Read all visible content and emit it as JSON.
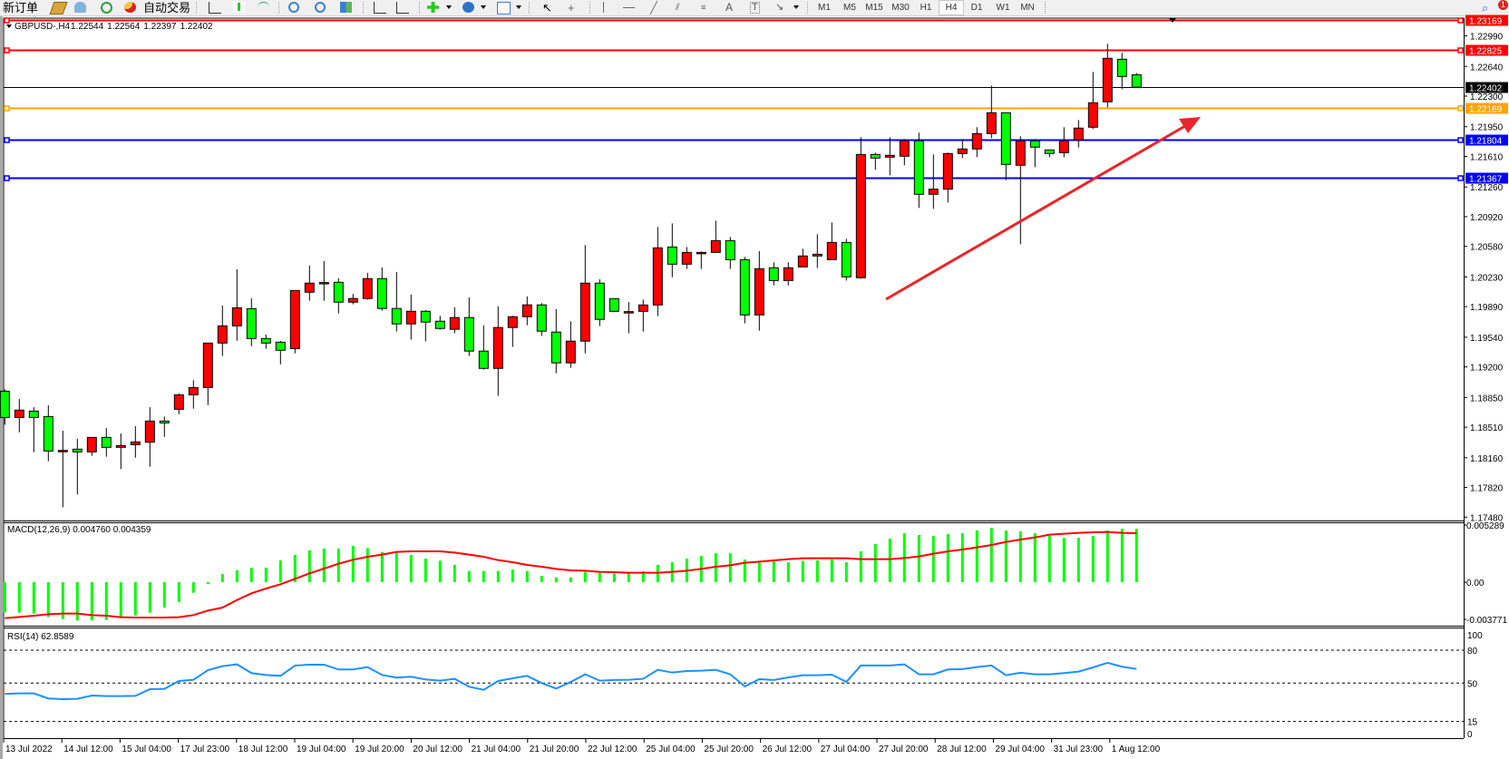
{
  "toolbar": {
    "new_order_label": "新订单",
    "auto_trading_label": "自动交易",
    "timeframes": [
      "M1",
      "M5",
      "M15",
      "M30",
      "H1",
      "H4",
      "D1",
      "W1",
      "MN"
    ],
    "active_timeframe": "H4",
    "notification_count": "1",
    "icons": [
      "new-order-icon",
      "market-watch-icon",
      "data-window-icon",
      "signals-icon",
      "auto-trading-icon",
      "bar-chart-icon",
      "candlestick-icon",
      "line-chart-icon",
      "zoom-in-icon",
      "zoom-out-icon",
      "tile-windows-icon",
      "chart-shift-icon",
      "auto-scroll-icon",
      "add-indicator-icon",
      "periods-clock-icon",
      "templates-icon",
      "cursor-icon",
      "crosshair-icon",
      "vertical-line-icon",
      "horizontal-line-icon",
      "trendline-icon",
      "fibo-channel-icon",
      "fibonacci-icon",
      "text-icon",
      "text-label-icon",
      "arrows-icon",
      "search-icon",
      "notification-icon"
    ]
  },
  "chart": {
    "symbol": "GBPUSD-,H4",
    "ohlc": [
      "1.22544",
      "1.22564",
      "1.22397",
      "1.22402"
    ],
    "price_ticks": [
      "1.22990",
      "1.22640",
      "1.22300",
      "1.21950",
      "1.21610",
      "1.21260",
      "1.20920",
      "1.20580",
      "1.20230",
      "1.19890",
      "1.19540",
      "1.19200",
      "1.18850",
      "1.18510",
      "1.18160",
      "1.17820",
      "1.17480"
    ],
    "levels": [
      {
        "price": "1.23169",
        "color": "#ff0000",
        "text_color": "#ffffff"
      },
      {
        "price": "1.22825",
        "color": "#ff0000",
        "text_color": "#ffffff"
      },
      {
        "price": "1.22402",
        "color": "#000000",
        "text_color": "#ffffff",
        "bid_line": true
      },
      {
        "price": "1.22169",
        "color": "#ffa500",
        "text_color": "#ffffff"
      },
      {
        "price": "1.21804",
        "color": "#0000ff",
        "text_color": "#ffffff"
      },
      {
        "price": "1.21367",
        "color": "#0000ff",
        "text_color": "#ffffff"
      }
    ],
    "time_labels": [
      "13 Jul 2022",
      "14 Jul 12:00",
      "15 Jul 04:00",
      "17 Jul 23:00",
      "18 Jul 12:00",
      "19 Jul 04:00",
      "19 Jul 20:00",
      "20 Jul 12:00",
      "21 Jul 04:00",
      "21 Jul 20:00",
      "22 Jul 12:00",
      "25 Jul 04:00",
      "25 Jul 20:00",
      "26 Jul 12:00",
      "27 Jul 04:00",
      "27 Jul 20:00",
      "28 Jul 12:00",
      "29 Jul 04:00",
      "31 Jul 23:00",
      "1 Aug 12:00"
    ],
    "bull_color": "#ff0000",
    "bear_color": "#00ff00",
    "arrow_color": "#e8262b",
    "macd": {
      "label": "MACD(12,26,9) 0.004760 0.004359",
      "ticks": [
        "0.005289",
        "0.00",
        "-0.003771"
      ],
      "hist_color": "#00ff00",
      "signal_color": "#ff0000"
    },
    "rsi": {
      "label": "RSI(14) 62.8589",
      "ticks": [
        "100",
        "80",
        "50",
        "15",
        "0"
      ],
      "levels": [
        80,
        50,
        15
      ],
      "line_color": "#1e90ff"
    }
  },
  "chart_data": {
    "type": "candlestick",
    "ylim": [
      1.1748,
      1.23169
    ],
    "ohlc": [
      [
        1.18922,
        1.18943,
        1.18538,
        1.18621
      ],
      [
        1.18621,
        1.18833,
        1.18452,
        1.18705
      ],
      [
        1.18694,
        1.18739,
        1.18224,
        1.18621
      ],
      [
        1.18632,
        1.1876,
        1.1812,
        1.18237
      ],
      [
        1.18244,
        1.18469,
        1.17594,
        1.18244
      ],
      [
        1.18258,
        1.18376,
        1.17739,
        1.18227
      ],
      [
        1.18227,
        1.18393,
        1.18182,
        1.18393
      ],
      [
        1.18393,
        1.185,
        1.18172,
        1.18279
      ],
      [
        1.18279,
        1.18438,
        1.1803,
        1.183
      ],
      [
        1.1831,
        1.18521,
        1.18161,
        1.18341
      ],
      [
        1.18338,
        1.18739,
        1.18058,
        1.1858
      ],
      [
        1.1858,
        1.18632,
        1.184,
        1.18559
      ],
      [
        1.18715,
        1.18895,
        1.18659,
        1.18881
      ],
      [
        1.18881,
        1.19047,
        1.18722,
        1.18964
      ],
      [
        1.18964,
        1.19473,
        1.18763,
        1.19473
      ],
      [
        1.19473,
        1.19902,
        1.19324,
        1.1967
      ],
      [
        1.1967,
        1.20317,
        1.195,
        1.19877
      ],
      [
        1.19867,
        1.19985,
        1.19438,
        1.19525
      ],
      [
        1.19525,
        1.1957,
        1.19407,
        1.19473
      ],
      [
        1.19483,
        1.19497,
        1.1923,
        1.1939
      ],
      [
        1.1941,
        1.20075,
        1.19355,
        1.20075
      ],
      [
        1.20055,
        1.2036,
        1.19958,
        1.20159
      ],
      [
        1.20166,
        1.20412,
        1.19958,
        1.20166
      ],
      [
        1.20169,
        1.20215,
        1.19813,
        1.19941
      ],
      [
        1.19941,
        1.20035,
        1.19917,
        1.19983
      ],
      [
        1.19983,
        1.20277,
        1.19969,
        1.20211
      ],
      [
        1.20211,
        1.20339,
        1.19844,
        1.19869
      ],
      [
        1.19869,
        1.20287,
        1.19606,
        1.19692
      ],
      [
        1.19692,
        1.20028,
        1.19512,
        1.19837
      ],
      [
        1.19837,
        1.19851,
        1.19491,
        1.19713
      ],
      [
        1.19723,
        1.19785,
        1.19626,
        1.1964
      ],
      [
        1.1963,
        1.19882,
        1.19585,
        1.19765
      ],
      [
        1.19765,
        1.19996,
        1.19325,
        1.19381
      ],
      [
        1.19381,
        1.19675,
        1.19169,
        1.19183
      ],
      [
        1.19183,
        1.19893,
        1.18869,
        1.19651
      ],
      [
        1.19651,
        1.19785,
        1.19429,
        1.19775
      ],
      [
        1.19775,
        1.20007,
        1.19678,
        1.1991
      ],
      [
        1.1991,
        1.19931,
        1.19554,
        1.19609
      ],
      [
        1.19599,
        1.19862,
        1.19128,
        1.19246
      ],
      [
        1.19246,
        1.19723,
        1.1919,
        1.19495
      ],
      [
        1.19495,
        1.20595,
        1.19356,
        1.20159
      ],
      [
        1.20159,
        1.20204,
        1.19668,
        1.19744
      ],
      [
        1.19982,
        1.19982,
        1.19826,
        1.19836
      ],
      [
        1.19833,
        1.19944,
        1.19584,
        1.19833
      ],
      [
        1.19836,
        1.19971,
        1.19605,
        1.19909
      ],
      [
        1.19909,
        1.20802,
        1.19781,
        1.20563
      ],
      [
        1.20573,
        1.20843,
        1.20227,
        1.20376
      ],
      [
        1.20376,
        1.20573,
        1.20321,
        1.20511
      ],
      [
        1.20511,
        1.20521,
        1.20321,
        1.20511
      ],
      [
        1.20511,
        1.20874,
        1.20511,
        1.20646
      ],
      [
        1.20646,
        1.20688,
        1.20321,
        1.20428
      ],
      [
        1.20428,
        1.20459,
        1.19698,
        1.19795
      ],
      [
        1.19795,
        1.20525,
        1.19615,
        1.20324
      ],
      [
        1.20335,
        1.20397,
        1.20134,
        1.20189
      ],
      [
        1.20189,
        1.20397,
        1.20134,
        1.20335
      ],
      [
        1.20345,
        1.20553,
        1.20345,
        1.2047
      ],
      [
        1.2047,
        1.20719,
        1.20331,
        1.2049
      ],
      [
        1.20428,
        1.20854,
        1.20428,
        1.20625
      ],
      [
        1.20625,
        1.20667,
        1.20189,
        1.20231
      ],
      [
        1.20221,
        1.21829,
        1.2021,
        1.21632
      ],
      [
        1.21632,
        1.21653,
        1.21456,
        1.21591
      ],
      [
        1.21601,
        1.21829,
        1.21393,
        1.21622
      ],
      [
        1.21612,
        1.21809,
        1.21508,
        1.21788
      ],
      [
        1.21788,
        1.21882,
        1.2102,
        1.21176
      ],
      [
        1.21176,
        1.21633,
        1.2101,
        1.21235
      ],
      [
        1.21235,
        1.21653,
        1.21082,
        1.21643
      ],
      [
        1.21643,
        1.21809,
        1.21591,
        1.21695
      ],
      [
        1.21695,
        1.21944,
        1.21601,
        1.21871
      ],
      [
        1.21871,
        1.22421,
        1.21819,
        1.2211
      ],
      [
        1.2211,
        1.2211,
        1.21338,
        1.21518
      ],
      [
        1.21508,
        1.2184,
        1.20605,
        1.21788
      ],
      [
        1.21788,
        1.21809,
        1.21487,
        1.21716
      ],
      [
        1.21684,
        1.21684,
        1.21601,
        1.21643
      ],
      [
        1.21653,
        1.21944,
        1.21601,
        1.21788
      ],
      [
        1.21799,
        1.22027,
        1.21712,
        1.21934
      ],
      [
        1.21944,
        1.22577,
        1.21923,
        1.22224
      ],
      [
        1.22235,
        1.22899,
        1.22172,
        1.22733
      ],
      [
        1.22722,
        1.22795,
        1.2238,
        1.22525
      ],
      [
        1.22544,
        1.22564,
        1.22397,
        1.22402
      ]
    ],
    "macd_ylim": [
      -0.003771,
      0.005289
    ],
    "macd_main": [
      -0.00269,
      -0.002717,
      -0.002798,
      -0.003094,
      -0.003282,
      -0.003416,
      -0.003416,
      -0.003363,
      -0.003201,
      -0.002959,
      -0.002717,
      -0.00226,
      -0.001775,
      -0.000942,
      -0.000161,
      0.000726,
      0.001076,
      0.001291,
      0.001291,
      0.001937,
      0.002421,
      0.002825,
      0.002986,
      0.002986,
      0.003228,
      0.00304,
      0.00269,
      0.002609,
      0.002421,
      0.002098,
      0.00191,
      0.001533,
      0.000995,
      0.000995,
      0.000995,
      0.00113,
      0.000995,
      0.000565,
      0.00043,
      0.00043,
      0.000915,
      0.000834,
      0.00078,
      0.00078,
      0.000968,
      0.001533,
      0.001775,
      0.002098,
      0.00234,
      0.002582,
      0.002582,
      0.002018,
      0.001883,
      0.001883,
      0.001775,
      0.001883,
      0.001937,
      0.002018,
      0.001775,
      0.002744,
      0.003389,
      0.003874,
      0.004358,
      0.004196,
      0.004116,
      0.004277,
      0.004358,
      0.0046,
      0.004842,
      0.0046,
      0.004519,
      0.004358,
      0.004116,
      0.003954,
      0.003954,
      0.004116,
      0.0046,
      0.004761,
      0.00476
    ],
    "macd_signal": [
      -0.003201,
      -0.003094,
      -0.002986,
      -0.002851,
      -0.002798,
      -0.002798,
      -0.002932,
      -0.002986,
      -0.00312,
      -0.003147,
      -0.003147,
      -0.003147,
      -0.00312,
      -0.002932,
      -0.002529,
      -0.00226,
      -0.001587,
      -0.000995,
      -0.000565,
      -0.000188,
      0.000296,
      0.00078,
      0.001211,
      0.001641,
      0.001991,
      0.00226,
      0.002448,
      0.00269,
      0.002744,
      0.002744,
      0.002744,
      0.002636,
      0.002448,
      0.00226,
      0.001964,
      0.001775,
      0.001533,
      0.001372,
      0.001184,
      0.001049,
      0.001022,
      0.000915,
      0.000888,
      0.000834,
      0.000834,
      0.000834,
      0.000915,
      0.001022,
      0.001184,
      0.001372,
      0.001506,
      0.001722,
      0.001829,
      0.001937,
      0.002044,
      0.002125,
      0.002125,
      0.002125,
      0.002125,
      0.002044,
      0.002044,
      0.002044,
      0.002152,
      0.002287,
      0.002529,
      0.002744,
      0.002905,
      0.003094,
      0.003309,
      0.003578,
      0.003793,
      0.003981,
      0.004223,
      0.004304,
      0.004385,
      0.004439,
      0.004465,
      0.004385,
      0.004359
    ],
    "rsi": [
      40.1,
      40.6,
      40.6,
      36.0,
      35.4,
      35.7,
      38.7,
      38.2,
      38.2,
      38.4,
      44.5,
      44.8,
      51.9,
      53.0,
      61.8,
      65.4,
      67.1,
      59.1,
      57.4,
      56.6,
      66.0,
      66.8,
      66.8,
      62.4,
      62.4,
      64.6,
      57.4,
      55.0,
      55.8,
      53.3,
      52.2,
      53.9,
      46.7,
      43.9,
      51.9,
      54.4,
      56.6,
      50.0,
      45.0,
      51.0,
      58.0,
      52.2,
      52.8,
      53.0,
      53.9,
      62.1,
      59.6,
      61.0,
      61.3,
      62.1,
      58.0,
      47.0,
      53.6,
      52.8,
      55.2,
      57.2,
      57.2,
      57.7,
      51.1,
      66.0,
      66.0,
      66.0,
      67.1,
      58.0,
      58.0,
      62.4,
      62.7,
      64.6,
      66.0,
      57.2,
      59.4,
      58.0,
      58.0,
      59.1,
      60.5,
      64.3,
      68.5,
      64.9,
      62.9
    ],
    "rsi_ylim": [
      0,
      100
    ]
  }
}
